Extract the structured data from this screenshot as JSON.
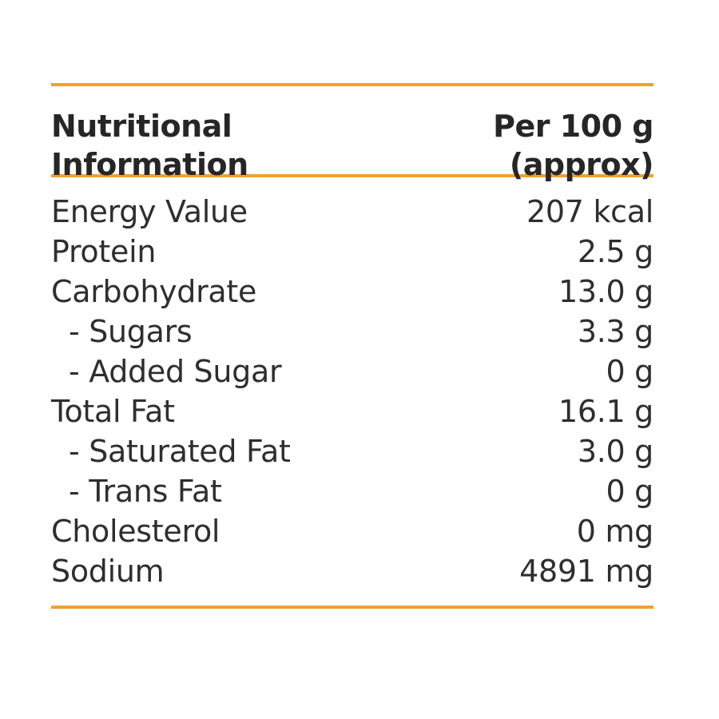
{
  "header": {
    "left_line1": "Nutritional",
    "left_line2": "Information",
    "right_line1": "Per 100 g",
    "right_line2": "(approx)"
  },
  "rows": [
    {
      "label": "Energy Value",
      "value": "207 kcal"
    },
    {
      "label": "Protein",
      "value": "2.5 g"
    },
    {
      "label": "Carbohydrate",
      "value": "13.0 g"
    },
    {
      "label": "- Sugars",
      "value": "3.3 g"
    },
    {
      "label": "- Added Sugar",
      "value": "0 g"
    },
    {
      "label": "Total Fat",
      "value": "16.1 g"
    },
    {
      "label": "- Saturated Fat",
      "value": "3.0 g"
    },
    {
      "label": "- Trans Fat",
      "value": "0 g"
    },
    {
      "label": "Cholesterol",
      "value": "0 mg"
    },
    {
      "label": "Sodium",
      "value": "4891 mg"
    }
  ],
  "colors": {
    "rule": "#f0a030",
    "text": "#2e2e2e"
  }
}
